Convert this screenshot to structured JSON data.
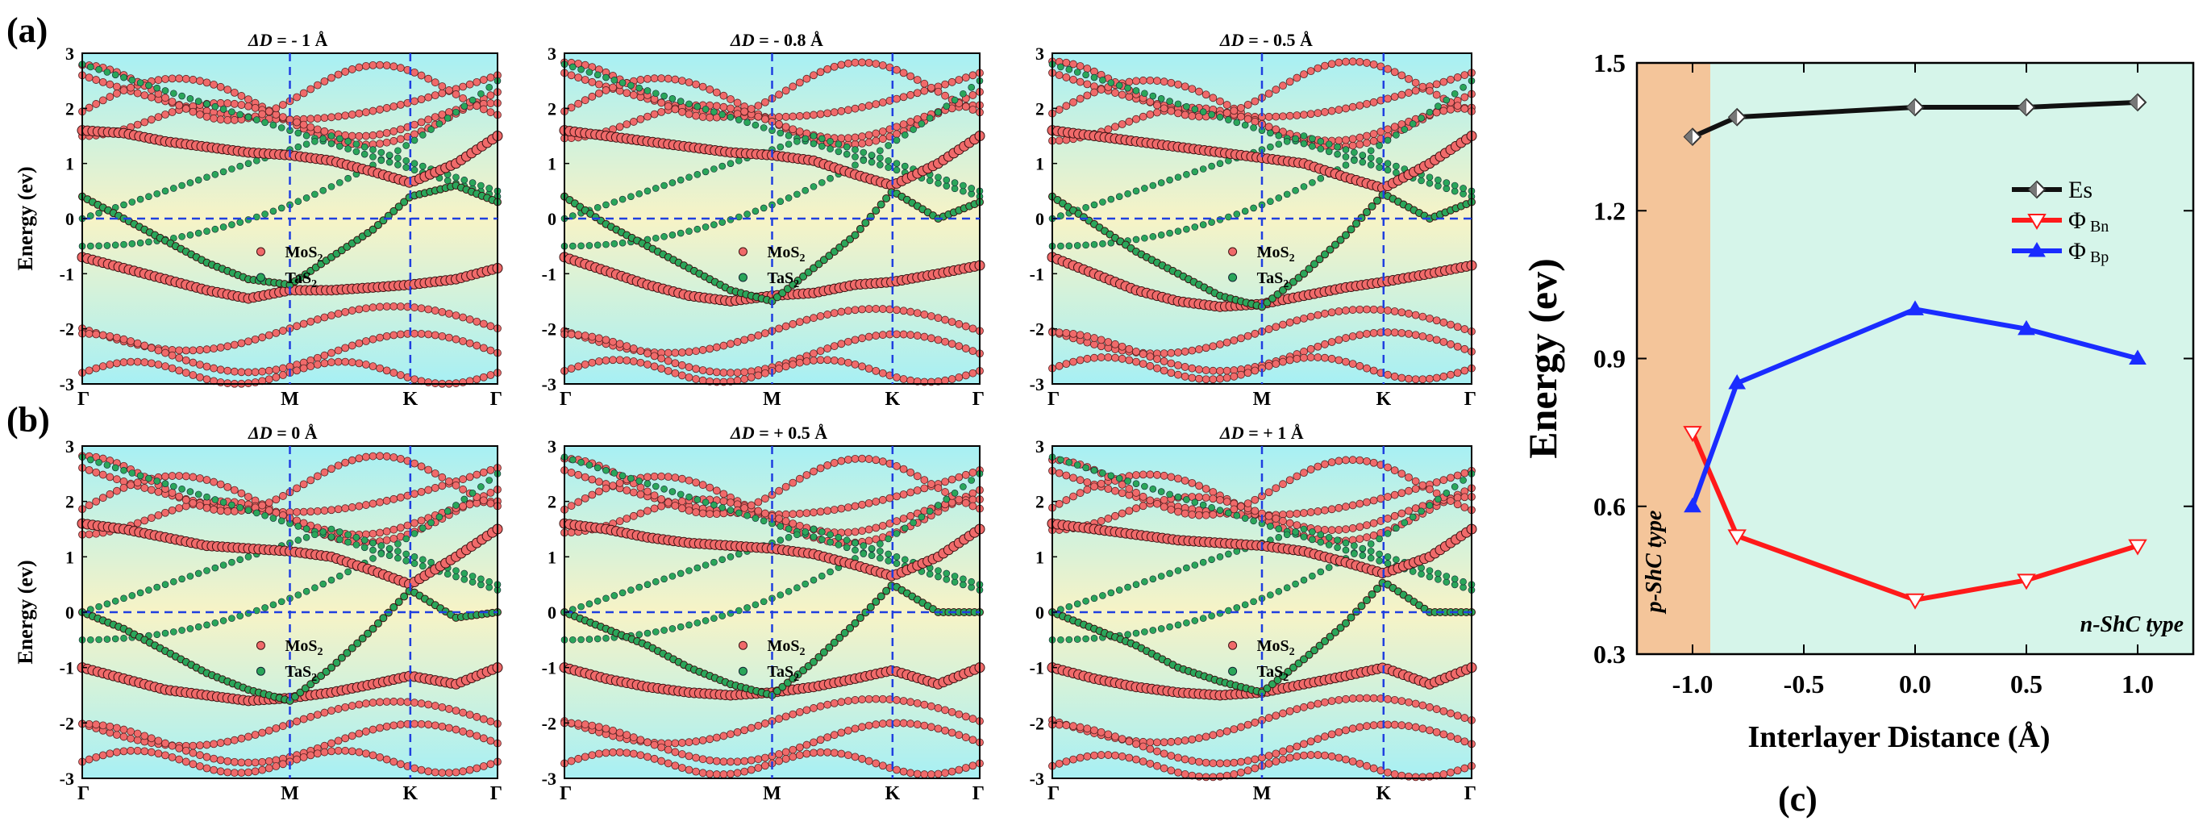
{
  "figure": {
    "label_a": "(a)",
    "label_b": "(b)",
    "label_c": "(c)"
  },
  "colors": {
    "mos2": "#f06a6a",
    "tas2": "#2aa65a",
    "guide": "#1f3fe0",
    "es": "#111111",
    "phi_bn": "#ff1a1a",
    "phi_bp": "#1a2cff",
    "p_region": "#f4c59a",
    "n_region": "#d6f5ea"
  },
  "chart_data": [
    {
      "type": "scatter",
      "panel": "a1",
      "title_prefix": "ΔD",
      "title_value": " = - 1 Å",
      "ylabel": "Energy (ev)",
      "ylim": [
        -3,
        3
      ],
      "yticks": [
        "3",
        "2",
        "1",
        "0",
        "-1",
        "-2",
        "-3"
      ],
      "kpoints": [
        "Γ",
        "M",
        "K",
        "Γ"
      ],
      "kpoint_positions": [
        0,
        0.5,
        0.79,
        1.0
      ],
      "legend": [
        "MoS2",
        "TaS2"
      ],
      "series": [
        {
          "name": "MoS2 (valence)",
          "x": [
            0,
            0.1,
            0.2,
            0.3,
            0.4,
            0.5,
            0.6,
            0.7,
            0.79,
            0.9,
            1.0
          ],
          "values": [
            -0.7,
            -0.9,
            -1.1,
            -1.3,
            -1.45,
            -1.3,
            -1.3,
            -1.25,
            -1.2,
            -1.1,
            -0.9
          ]
        },
        {
          "name": "MoS2 (conduction)",
          "x": [
            0,
            0.1,
            0.2,
            0.3,
            0.4,
            0.5,
            0.6,
            0.7,
            0.79,
            0.9,
            1.0
          ],
          "values": [
            1.6,
            1.55,
            1.4,
            1.3,
            1.2,
            1.15,
            1.05,
            0.85,
            0.65,
            1.0,
            1.5
          ]
        },
        {
          "name": "TaS2",
          "x": [
            0,
            0.1,
            0.2,
            0.3,
            0.4,
            0.5,
            0.6,
            0.7,
            0.79,
            0.9,
            1.0
          ],
          "values": [
            0.4,
            0.0,
            -0.4,
            -0.8,
            -1.1,
            -1.2,
            -0.7,
            -0.2,
            0.4,
            0.6,
            0.3
          ]
        }
      ]
    },
    {
      "type": "scatter",
      "panel": "a2",
      "title_prefix": "ΔD",
      "title_value": " = - 0.8 Å",
      "ylim": [
        -3,
        3
      ],
      "yticks": [
        "3",
        "2",
        "1",
        "0",
        "-1",
        "-2",
        "-3"
      ],
      "kpoints": [
        "Γ",
        "M",
        "K",
        "Γ"
      ],
      "kpoint_positions": [
        0,
        0.5,
        0.79,
        1.0
      ],
      "legend": [
        "MoS2",
        "TaS2"
      ],
      "series": [
        {
          "name": "MoS2 (valence)",
          "x": [
            0,
            0.1,
            0.2,
            0.3,
            0.4,
            0.5,
            0.6,
            0.7,
            0.79,
            0.9,
            1.0
          ],
          "values": [
            -0.7,
            -0.95,
            -1.2,
            -1.4,
            -1.5,
            -1.4,
            -1.35,
            -1.2,
            -1.15,
            -1.0,
            -0.85
          ]
        },
        {
          "name": "MoS2 (conduction)",
          "x": [
            0,
            0.1,
            0.2,
            0.3,
            0.4,
            0.5,
            0.6,
            0.7,
            0.79,
            0.9,
            1.0
          ],
          "values": [
            1.6,
            1.5,
            1.4,
            1.3,
            1.2,
            1.15,
            1.05,
            0.8,
            0.6,
            1.0,
            1.5
          ]
        },
        {
          "name": "TaS2",
          "x": [
            0,
            0.1,
            0.2,
            0.3,
            0.4,
            0.5,
            0.6,
            0.7,
            0.79,
            0.9,
            1.0
          ],
          "values": [
            0.4,
            -0.1,
            -0.5,
            -0.9,
            -1.3,
            -1.5,
            -0.9,
            -0.3,
            0.5,
            0.0,
            0.3
          ]
        }
      ]
    },
    {
      "type": "scatter",
      "panel": "a3",
      "title_prefix": "ΔD",
      "title_value": " = - 0.5 Å",
      "ylim": [
        -3,
        3
      ],
      "yticks": [
        "3",
        "2",
        "1",
        "0",
        "-1",
        "-2",
        "-3"
      ],
      "kpoints": [
        "Γ",
        "M",
        "K",
        "Γ"
      ],
      "kpoint_positions": [
        0,
        0.5,
        0.79,
        1.0
      ],
      "legend": [
        "MoS2",
        "TaS2"
      ],
      "series": [
        {
          "name": "MoS2 (valence)",
          "x": [
            0,
            0.1,
            0.2,
            0.3,
            0.4,
            0.5,
            0.6,
            0.7,
            0.79,
            0.9,
            1.0
          ],
          "values": [
            -0.7,
            -1.0,
            -1.3,
            -1.5,
            -1.6,
            -1.55,
            -1.4,
            -1.25,
            -1.15,
            -1.0,
            -0.85
          ]
        },
        {
          "name": "MoS2 (conduction)",
          "x": [
            0,
            0.1,
            0.2,
            0.3,
            0.4,
            0.5,
            0.6,
            0.7,
            0.79,
            0.9,
            1.0
          ],
          "values": [
            1.6,
            1.5,
            1.4,
            1.3,
            1.2,
            1.1,
            1.0,
            0.75,
            0.55,
            1.0,
            1.5
          ]
        },
        {
          "name": "TaS2",
          "x": [
            0,
            0.1,
            0.2,
            0.3,
            0.4,
            0.5,
            0.6,
            0.7,
            0.79,
            0.9,
            1.0
          ],
          "values": [
            0.4,
            -0.1,
            -0.6,
            -1.0,
            -1.4,
            -1.6,
            -1.0,
            -0.3,
            0.45,
            0.0,
            0.3
          ]
        }
      ]
    },
    {
      "type": "scatter",
      "panel": "b1",
      "title_prefix": "ΔD",
      "title_value": " = 0 Å",
      "ylabel": "Energy (ev)",
      "ylim": [
        -3,
        3
      ],
      "yticks": [
        "3",
        "2",
        "1",
        "0",
        "-1",
        "-2",
        "-3"
      ],
      "kpoints": [
        "Γ",
        "M",
        "K",
        "Γ"
      ],
      "kpoint_positions": [
        0,
        0.5,
        0.79,
        1.0
      ],
      "legend": [
        "MoS2",
        "TaS2"
      ],
      "series": [
        {
          "name": "MoS2 (valence)",
          "x": [
            0,
            0.1,
            0.2,
            0.3,
            0.4,
            0.5,
            0.6,
            0.7,
            0.79,
            0.9,
            1.0
          ],
          "values": [
            -1.0,
            -1.2,
            -1.4,
            -1.5,
            -1.6,
            -1.55,
            -1.45,
            -1.3,
            -1.15,
            -1.3,
            -1.0
          ]
        },
        {
          "name": "MoS2 (conduction)",
          "x": [
            0,
            0.1,
            0.2,
            0.3,
            0.4,
            0.5,
            0.6,
            0.7,
            0.79,
            0.9,
            1.0
          ],
          "values": [
            1.6,
            1.5,
            1.35,
            1.2,
            1.15,
            1.1,
            1.0,
            0.75,
            0.5,
            1.0,
            1.5
          ]
        },
        {
          "name": "TaS2",
          "x": [
            0,
            0.1,
            0.2,
            0.3,
            0.4,
            0.5,
            0.6,
            0.7,
            0.79,
            0.9,
            1.0
          ],
          "values": [
            0.0,
            -0.3,
            -0.7,
            -1.1,
            -1.4,
            -1.6,
            -1.0,
            -0.3,
            0.4,
            -0.1,
            0.0
          ]
        }
      ]
    },
    {
      "type": "scatter",
      "panel": "b2",
      "title_prefix": "ΔD",
      "title_value": " = + 0.5 Å",
      "ylim": [
        -3,
        3
      ],
      "yticks": [
        "3",
        "2",
        "1",
        "0",
        "-1",
        "-2",
        "-3"
      ],
      "kpoints": [
        "Γ",
        "M",
        "K",
        "Γ"
      ],
      "kpoint_positions": [
        0,
        0.5,
        0.79,
        1.0
      ],
      "legend": [
        "MoS2",
        "TaS2"
      ],
      "series": [
        {
          "name": "MoS2 (valence)",
          "x": [
            0,
            0.1,
            0.2,
            0.3,
            0.4,
            0.5,
            0.6,
            0.7,
            0.79,
            0.9,
            1.0
          ],
          "values": [
            -1.0,
            -1.2,
            -1.35,
            -1.45,
            -1.5,
            -1.45,
            -1.35,
            -1.2,
            -1.05,
            -1.3,
            -1.0
          ]
        },
        {
          "name": "MoS2 (conduction)",
          "x": [
            0,
            0.1,
            0.2,
            0.3,
            0.4,
            0.5,
            0.6,
            0.7,
            0.79,
            0.9,
            1.0
          ],
          "values": [
            1.6,
            1.5,
            1.35,
            1.25,
            1.2,
            1.15,
            1.05,
            0.85,
            0.65,
            1.0,
            1.5
          ]
        },
        {
          "name": "TaS2",
          "x": [
            0,
            0.1,
            0.2,
            0.3,
            0.4,
            0.5,
            0.6,
            0.7,
            0.79,
            0.9,
            1.0
          ],
          "values": [
            0.0,
            -0.3,
            -0.6,
            -1.0,
            -1.3,
            -1.5,
            -0.9,
            -0.2,
            0.5,
            0.0,
            0.0
          ]
        }
      ]
    },
    {
      "type": "scatter",
      "panel": "b3",
      "title_prefix": "ΔD",
      "title_value": " = + 1 Å",
      "ylim": [
        -3,
        3
      ],
      "yticks": [
        "3",
        "2",
        "1",
        "0",
        "-1",
        "-2",
        "-3"
      ],
      "kpoints": [
        "Γ",
        "M",
        "K",
        "Γ"
      ],
      "kpoint_positions": [
        0,
        0.5,
        0.79,
        1.0
      ],
      "legend": [
        "MoS2",
        "TaS2"
      ],
      "series": [
        {
          "name": "MoS2 (valence)",
          "x": [
            0,
            0.1,
            0.2,
            0.3,
            0.4,
            0.5,
            0.6,
            0.7,
            0.79,
            0.9,
            1.0
          ],
          "values": [
            -1.0,
            -1.2,
            -1.35,
            -1.45,
            -1.5,
            -1.45,
            -1.3,
            -1.15,
            -1.0,
            -1.3,
            -1.0
          ]
        },
        {
          "name": "MoS2 (conduction)",
          "x": [
            0,
            0.1,
            0.2,
            0.3,
            0.4,
            0.5,
            0.6,
            0.7,
            0.79,
            0.9,
            1.0
          ],
          "values": [
            1.6,
            1.5,
            1.4,
            1.3,
            1.25,
            1.2,
            1.1,
            0.9,
            0.7,
            1.0,
            1.5
          ]
        },
        {
          "name": "TaS2",
          "x": [
            0,
            0.1,
            0.2,
            0.3,
            0.4,
            0.5,
            0.6,
            0.7,
            0.79,
            0.9,
            1.0
          ],
          "values": [
            0.0,
            -0.3,
            -0.6,
            -1.0,
            -1.25,
            -1.45,
            -0.85,
            -0.2,
            0.55,
            0.0,
            0.0
          ]
        }
      ]
    },
    {
      "type": "line",
      "panel": "c",
      "xlabel": "Interlayer Distance (Å)",
      "ylabel": "Energy (ev)",
      "xlim": [
        -1.25,
        1.25
      ],
      "ylim": [
        0.3,
        1.5
      ],
      "xticks": [
        -1.0,
        -0.5,
        0.0,
        0.5,
        1.0
      ],
      "xtick_labels": [
        "-1.0",
        "-0.5",
        "0.0",
        "0.5",
        "1.0"
      ],
      "yticks": [
        0.3,
        0.6,
        0.9,
        1.2,
        1.5
      ],
      "ytick_labels": [
        "0.3",
        "0.6",
        "0.9",
        "1.2",
        "1.5"
      ],
      "region_boundary": -0.92,
      "region_left_label": "p-ShC type",
      "region_right_label": "n-ShC type",
      "x": [
        -1.0,
        -0.8,
        0.0,
        0.5,
        1.0
      ],
      "series": [
        {
          "name": "Es",
          "legend_main": "Es",
          "legend_sub": "",
          "values": [
            1.35,
            1.39,
            1.41,
            1.41,
            1.42
          ]
        },
        {
          "name": "ΦBn",
          "legend_main": "Φ",
          "legend_sub": "Bn",
          "values": [
            0.75,
            0.54,
            0.41,
            0.45,
            0.52
          ]
        },
        {
          "name": "ΦBp",
          "legend_main": "Φ",
          "legend_sub": "Bp",
          "values": [
            0.6,
            0.85,
            1.0,
            0.96,
            0.9
          ]
        }
      ]
    }
  ]
}
